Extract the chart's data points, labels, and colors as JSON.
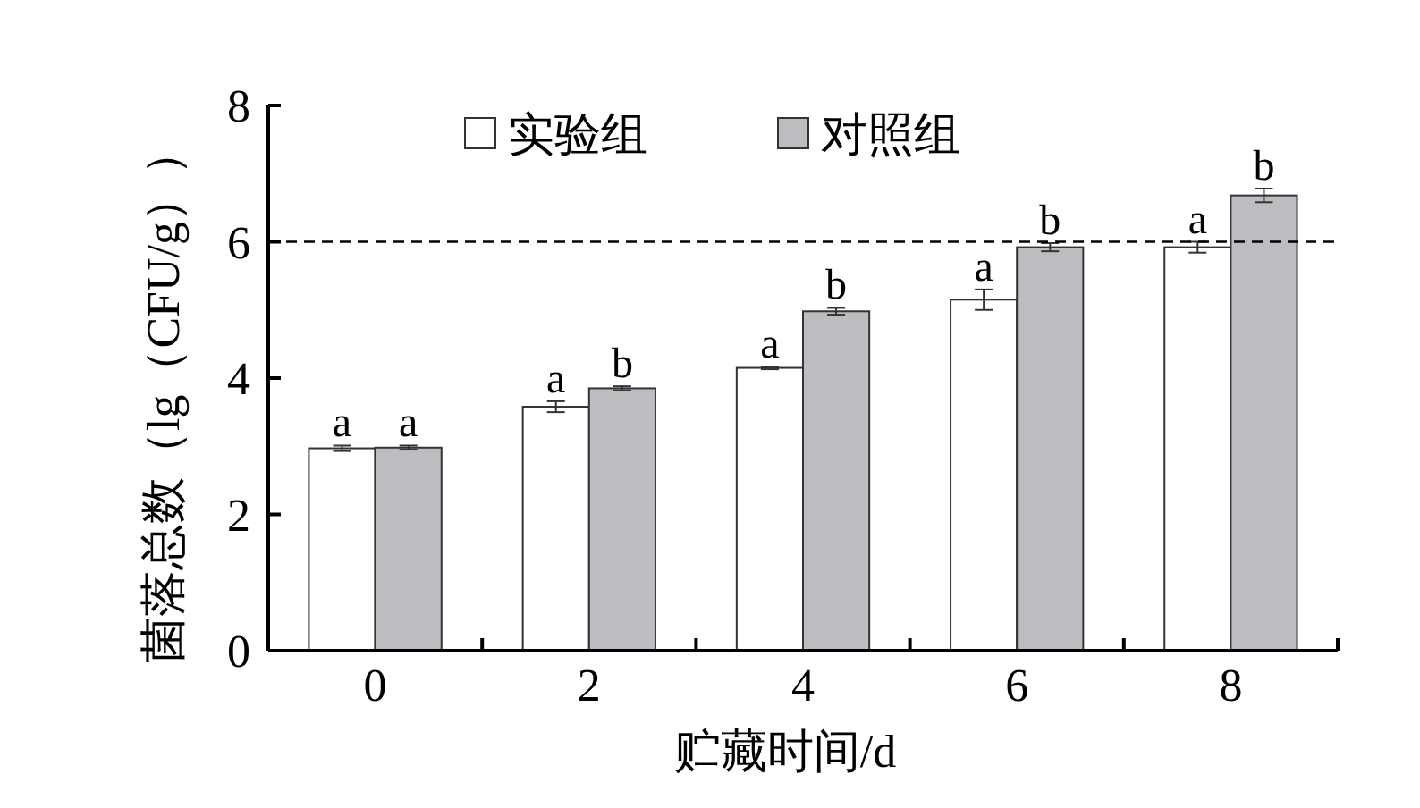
{
  "chart_data": {
    "type": "bar",
    "xlabel": "贮藏时间/d",
    "ylabel": "菌落总数（lg（CFU/g））",
    "categories": [
      "0",
      "2",
      "4",
      "6",
      "8"
    ],
    "ylim": [
      0,
      8
    ],
    "yticks": [
      0,
      2,
      4,
      6,
      8
    ],
    "legend": "top",
    "grid": false,
    "series": [
      {
        "name": "实验组",
        "color": "#ffffff",
        "values": [
          2.97,
          3.58,
          4.15,
          5.15,
          5.92
        ],
        "errors": [
          0.04,
          0.08,
          0.02,
          0.15,
          0.08
        ],
        "value_labels": [
          "a",
          "a",
          "a",
          "a",
          "a"
        ]
      },
      {
        "name": "对照组",
        "color": "#bcbdc0",
        "values": [
          2.98,
          3.85,
          4.98,
          5.92,
          6.68
        ],
        "errors": [
          0.03,
          0.03,
          0.05,
          0.06,
          0.1
        ],
        "value_labels": [
          "a",
          "b",
          "b",
          "b",
          "b"
        ]
      }
    ],
    "ref_lines": [
      {
        "axis": "y",
        "value": 6,
        "line_style": "dashed",
        "color": "#000000"
      }
    ]
  }
}
